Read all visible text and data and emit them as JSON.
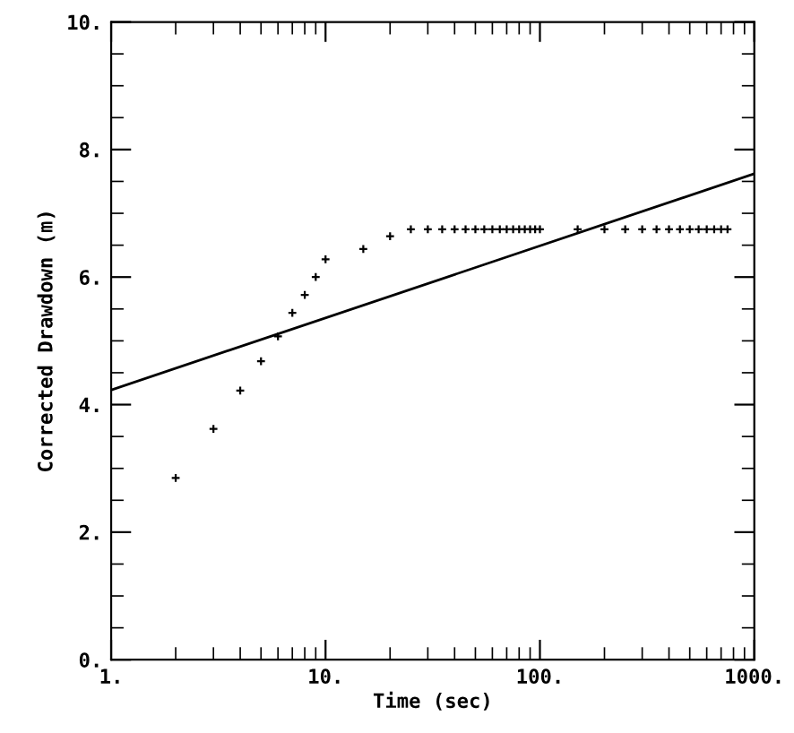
{
  "chart_data": {
    "type": "scatter",
    "xlabel": "Time (sec)",
    "ylabel": "Corrected Drawdown (m)",
    "log": "x",
    "xlim": [
      1,
      1000
    ],
    "ylim": [
      0,
      10
    ],
    "xticks": [
      {
        "value": 1,
        "label": "1."
      },
      {
        "value": 10,
        "label": "10."
      },
      {
        "value": 100,
        "label": "100."
      },
      {
        "value": 1000,
        "label": "1000."
      }
    ],
    "yticks": [
      {
        "value": 0,
        "label": "0."
      },
      {
        "value": 2,
        "label": "2."
      },
      {
        "value": 4,
        "label": "4."
      },
      {
        "value": 6,
        "label": "6."
      },
      {
        "value": 8,
        "label": "8."
      },
      {
        "value": 10,
        "label": "10."
      }
    ],
    "grid": false,
    "legend": false,
    "series": [
      {
        "color": "#000000",
        "marker": "cross",
        "x": [
          2,
          3,
          4,
          5,
          6,
          7,
          8,
          9,
          10,
          15,
          20,
          25,
          30,
          35,
          40,
          45,
          50,
          55,
          60,
          65,
          70,
          75,
          80,
          85,
          90,
          95,
          100,
          150,
          200,
          250,
          300,
          350,
          400,
          450,
          500,
          550,
          600,
          650,
          700,
          750
        ],
        "values": [
          2.85,
          3.62,
          4.22,
          4.68,
          5.07,
          5.44,
          5.72,
          6.0,
          6.28,
          6.44,
          6.64,
          6.75,
          6.75,
          6.75,
          6.75,
          6.75,
          6.75,
          6.75,
          6.75,
          6.75,
          6.75,
          6.75,
          6.75,
          6.75,
          6.75,
          6.75,
          6.75,
          6.75,
          6.75,
          6.75,
          6.75,
          6.75,
          6.75,
          6.75,
          6.75,
          6.75,
          6.75,
          6.75,
          6.75,
          6.75
        ]
      },
      {
        "type": "line",
        "color": "#000000",
        "line_style": "solid",
        "x": [
          1,
          1000
        ],
        "values": [
          4.23,
          7.62
        ]
      }
    ]
  }
}
